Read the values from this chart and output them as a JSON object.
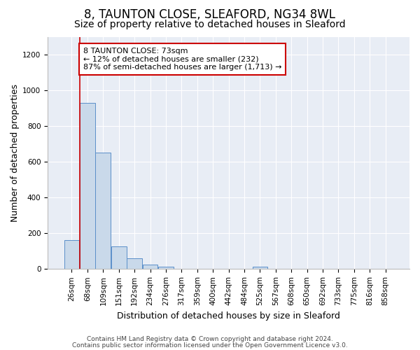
{
  "title1": "8, TAUNTON CLOSE, SLEAFORD, NG34 8WL",
  "title2": "Size of property relative to detached houses in Sleaford",
  "xlabel": "Distribution of detached houses by size in Sleaford",
  "ylabel": "Number of detached properties",
  "footnote1": "Contains HM Land Registry data © Crown copyright and database right 2024.",
  "footnote2": "Contains public sector information licensed under the Open Government Licence v3.0.",
  "bin_labels": [
    "26sqm",
    "68sqm",
    "109sqm",
    "151sqm",
    "192sqm",
    "234sqm",
    "276sqm",
    "317sqm",
    "359sqm",
    "400sqm",
    "442sqm",
    "484sqm",
    "525sqm",
    "567sqm",
    "608sqm",
    "650sqm",
    "692sqm",
    "733sqm",
    "775sqm",
    "816sqm",
    "858sqm"
  ],
  "bar_values": [
    160,
    930,
    650,
    125,
    60,
    25,
    12,
    0,
    0,
    0,
    0,
    0,
    12,
    0,
    0,
    0,
    0,
    0,
    0,
    0,
    0
  ],
  "bar_color": "#c9d9ea",
  "bar_edge_color": "#5b8fc9",
  "vline_color": "#cc0000",
  "vline_x_idx": 0.5,
  "annotation_text": "8 TAUNTON CLOSE: 73sqm\n← 12% of detached houses are smaller (232)\n87% of semi-detached houses are larger (1,713) →",
  "annotation_box_facecolor": "#ffffff",
  "annotation_box_edgecolor": "#cc0000",
  "ylim": [
    0,
    1300
  ],
  "yticks": [
    0,
    200,
    400,
    600,
    800,
    1000,
    1200
  ],
  "fig_bg_color": "#ffffff",
  "plot_bg_color": "#e8edf5",
  "grid_color": "#ffffff",
  "title1_fontsize": 12,
  "title2_fontsize": 10,
  "ylabel_fontsize": 9,
  "xlabel_fontsize": 9,
  "tick_fontsize": 7.5,
  "annotation_fontsize": 8,
  "footnote_fontsize": 6.5
}
